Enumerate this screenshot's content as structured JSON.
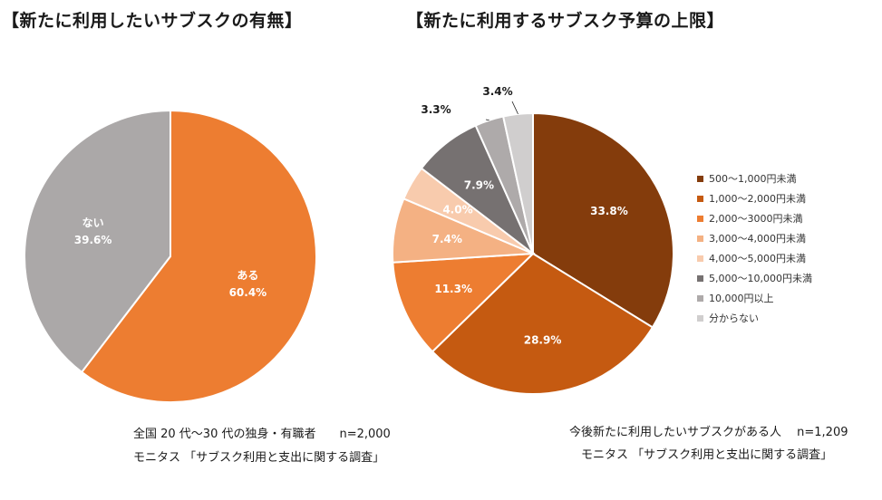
{
  "chart_data": [
    {
      "type": "pie",
      "title": "【新たに利用したいサブスクの有無】",
      "slices": [
        {
          "label": "ある",
          "value": 60.4,
          "display": "60.4%",
          "color": "#ED7D31"
        },
        {
          "label": "ない",
          "value": 39.6,
          "display": "39.6%",
          "color": "#ABA8A8"
        }
      ],
      "note": "全国 20 代～30 代の独身・有職者　　n=2,000",
      "source": "モニタス 「サブスク利用と支出に関する調査」"
    },
    {
      "type": "pie",
      "title": "【新たに利用するサブスク予算の上限】",
      "slices": [
        {
          "label": "500～1,000円未満",
          "value": 33.8,
          "display": "33.8%",
          "color": "#843C0C"
        },
        {
          "label": "1,000～2,000円未満",
          "value": 28.9,
          "display": "28.9%",
          "color": "#C55A11"
        },
        {
          "label": "2,000～3000円未満",
          "value": 11.3,
          "display": "11.3%",
          "color": "#ED7D31"
        },
        {
          "label": "3,000～4,000円未満",
          "value": 7.4,
          "display": "7.4%",
          "color": "#F4B183"
        },
        {
          "label": "4,000～5,000円未満",
          "value": 4.0,
          "display": "4.0%",
          "color": "#F8CBAD"
        },
        {
          "label": "5,000～10,000円未満",
          "value": 7.9,
          "display": "7.9%",
          "color": "#767171"
        },
        {
          "label": "10,000円以上",
          "value": 3.3,
          "display": "3.3%",
          "color": "#AEAAAA"
        },
        {
          "label": "分からない",
          "value": 3.4,
          "display": "3.4%",
          "color": "#D0CECE"
        }
      ],
      "legend_position": "right",
      "note": "今後新たに利用したいサブスクがある人　 n=1,209",
      "source": "モニタス 「サブスク利用と支出に関する調査」"
    }
  ]
}
